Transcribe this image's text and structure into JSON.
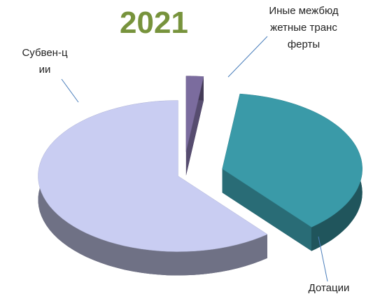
{
  "chart_data": {
    "type": "pie3d",
    "title": "2021",
    "categories": [
      "Иные межбюджетные трансферты",
      "Дотации",
      "Субвен-ции"
    ],
    "values": [
      2,
      37,
      61
    ],
    "colors": [
      "#7b6c9e",
      "#3a9aa8",
      "#c9cdf2"
    ]
  }
}
